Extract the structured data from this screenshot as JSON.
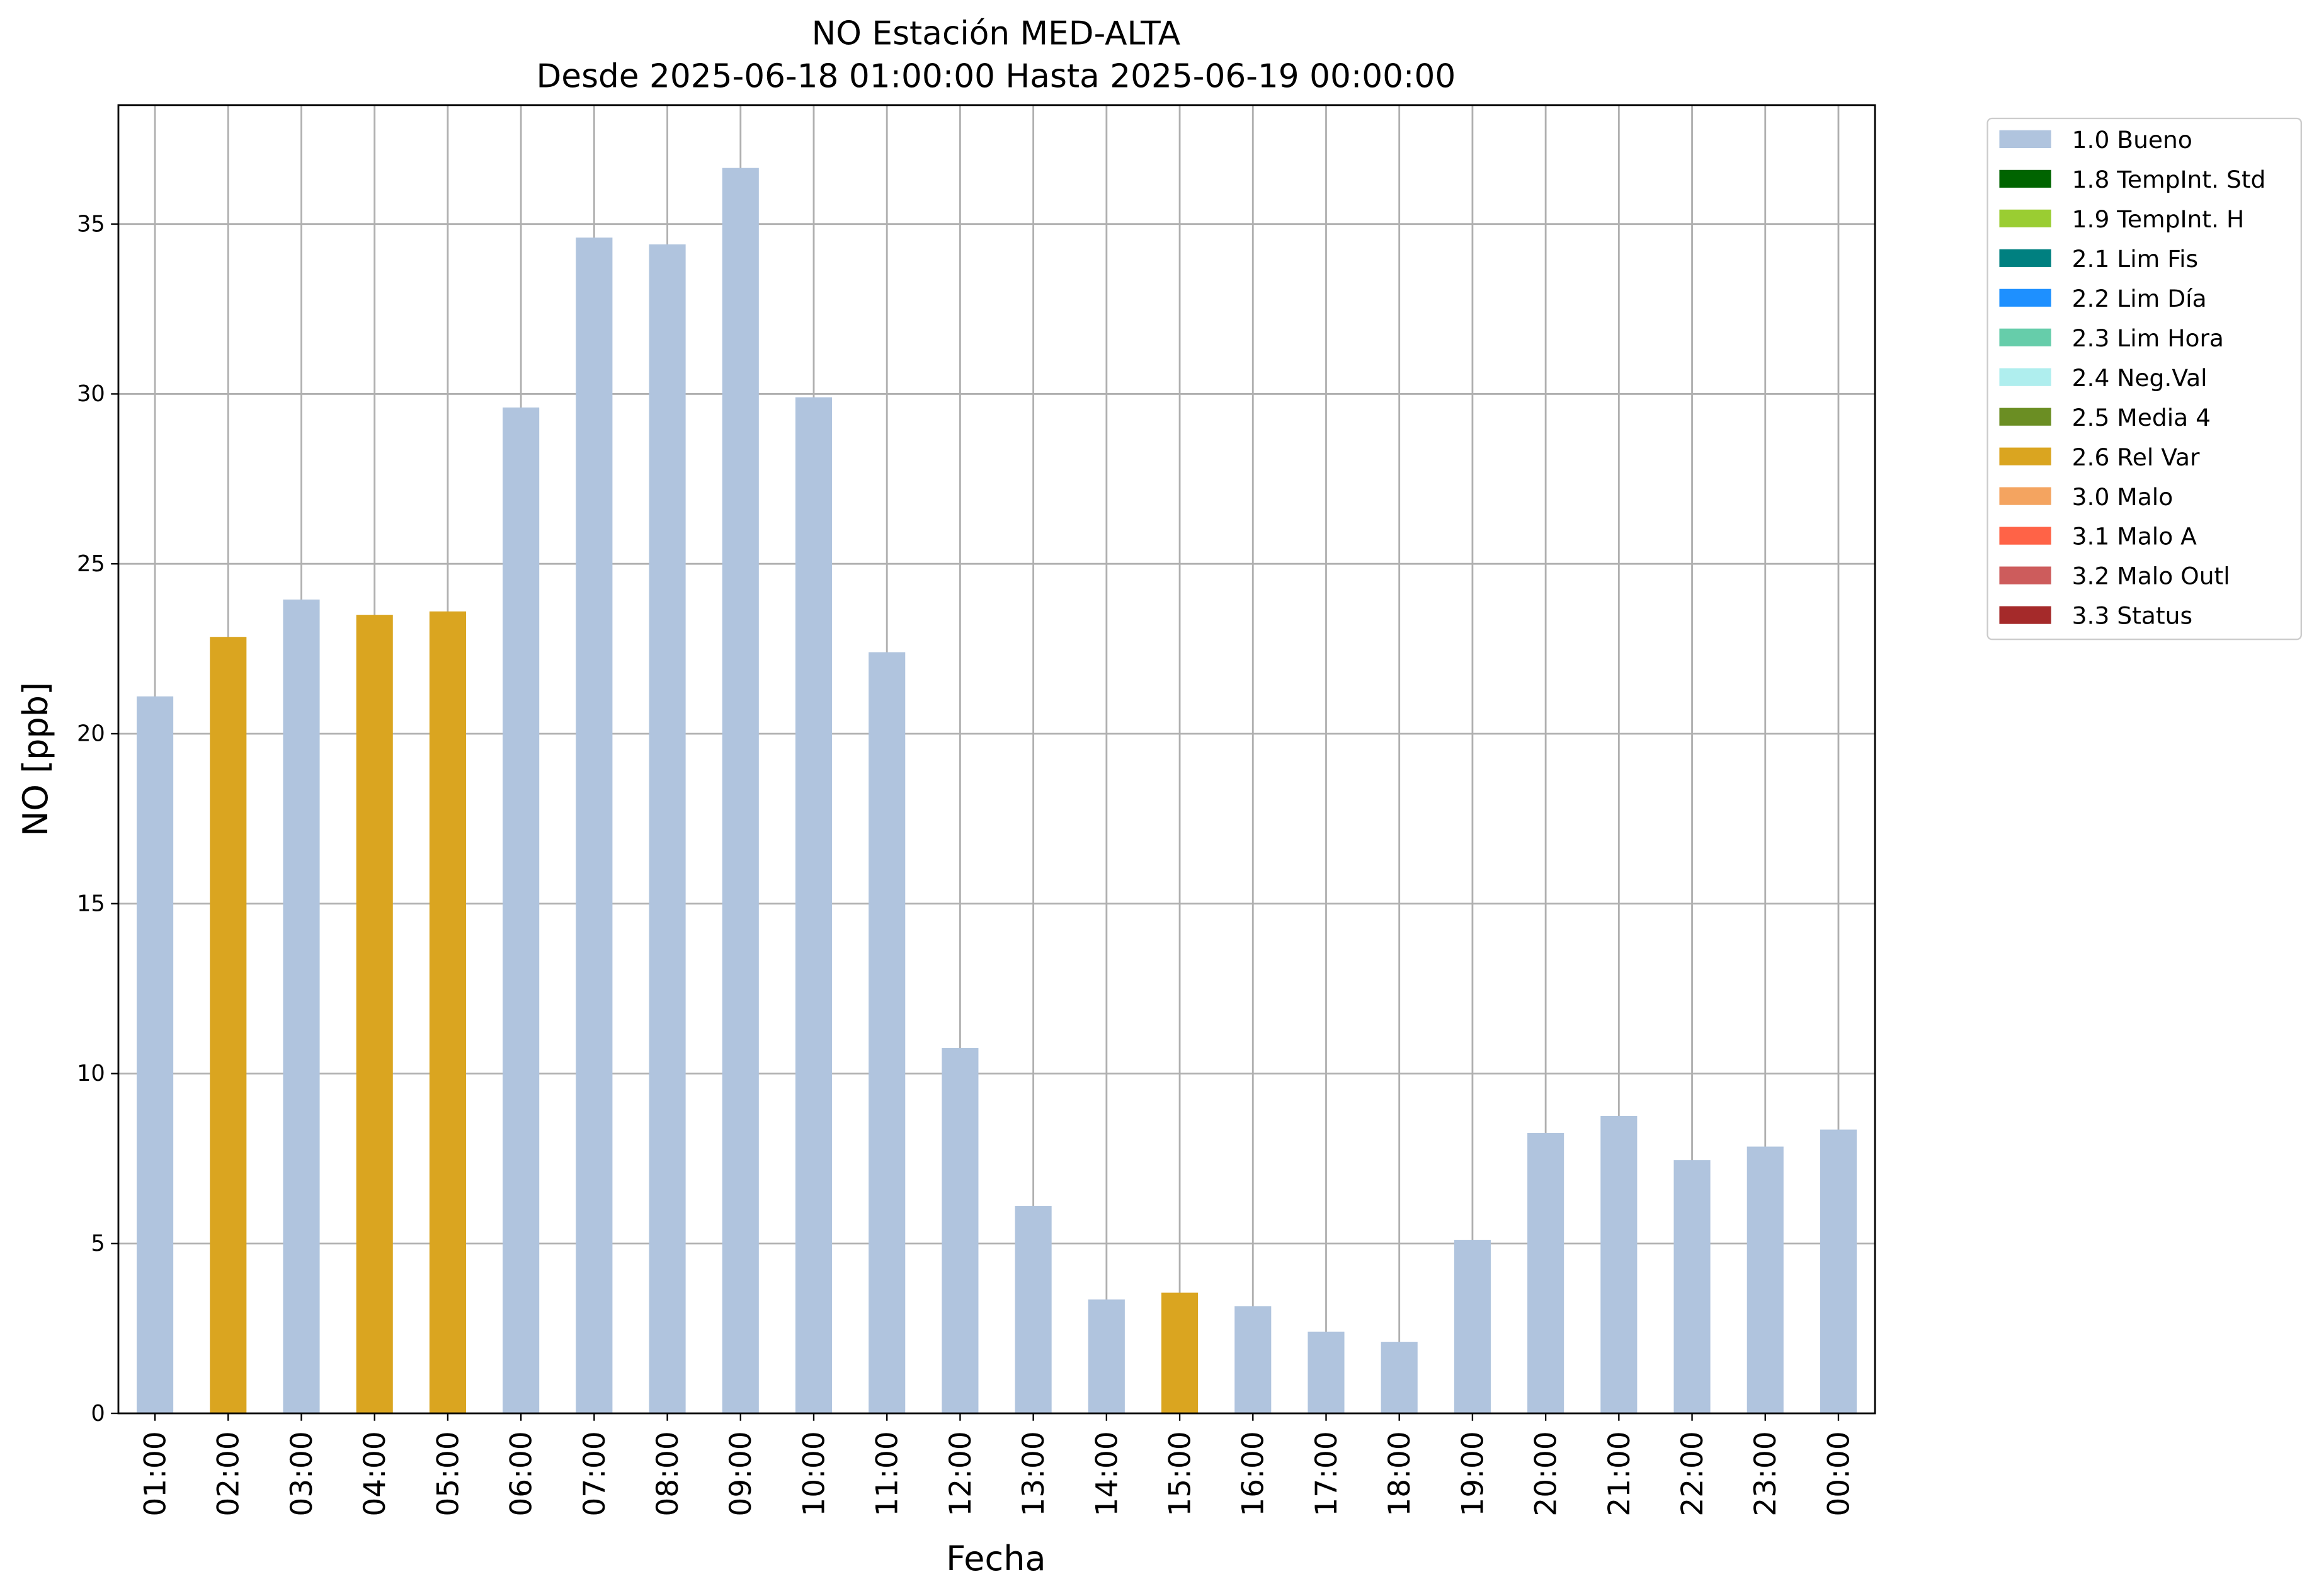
{
  "chart_data": {
    "type": "bar",
    "title": "NO Estación MED-ALTA",
    "subtitle": "Desde 2025-06-18 01:00:00 Hasta 2025-06-19 00:00:00",
    "x_label": "Fecha",
    "y_label": "NO [ppb]",
    "categories": [
      "01:00",
      "02:00",
      "03:00",
      "04:00",
      "05:00",
      "06:00",
      "07:00",
      "08:00",
      "09:00",
      "10:00",
      "11:00",
      "12:00",
      "13:00",
      "14:00",
      "15:00",
      "16:00",
      "17:00",
      "18:00",
      "19:00",
      "20:00",
      "21:00",
      "22:00",
      "23:00",
      "00:00"
    ],
    "series": [
      {
        "name": "1.0 Bueno",
        "color": "#b0c4de",
        "values": [
          21.1,
          null,
          23.95,
          null,
          null,
          29.6,
          34.6,
          34.4,
          36.65,
          29.9,
          22.4,
          10.75,
          6.1,
          3.35,
          null,
          3.15,
          2.4,
          2.1,
          5.1,
          8.25,
          8.75,
          7.45,
          7.85,
          8.35
        ]
      },
      {
        "name": "1.8 TempInt. Std",
        "color": "#006400",
        "values": [
          null,
          null,
          null,
          null,
          null,
          null,
          null,
          null,
          null,
          null,
          null,
          null,
          null,
          null,
          null,
          null,
          null,
          null,
          null,
          null,
          null,
          null,
          null,
          null
        ]
      },
      {
        "name": "1.9 TempInt. H",
        "color": "#9acd32",
        "values": [
          null,
          null,
          null,
          null,
          null,
          null,
          null,
          null,
          null,
          null,
          null,
          null,
          null,
          null,
          null,
          null,
          null,
          null,
          null,
          null,
          null,
          null,
          null,
          null
        ]
      },
      {
        "name": "2.1 Lim Fis",
        "color": "#008080",
        "values": [
          null,
          null,
          null,
          null,
          null,
          null,
          null,
          null,
          null,
          null,
          null,
          null,
          null,
          null,
          null,
          null,
          null,
          null,
          null,
          null,
          null,
          null,
          null,
          null
        ]
      },
      {
        "name": "2.2 Lim Día",
        "color": "#1e90ff",
        "values": [
          null,
          null,
          null,
          null,
          null,
          null,
          null,
          null,
          null,
          null,
          null,
          null,
          null,
          null,
          null,
          null,
          null,
          null,
          null,
          null,
          null,
          null,
          null,
          null
        ]
      },
      {
        "name": "2.3 Lim Hora",
        "color": "#66cdaa",
        "values": [
          null,
          null,
          null,
          null,
          null,
          null,
          null,
          null,
          null,
          null,
          null,
          null,
          null,
          null,
          null,
          null,
          null,
          null,
          null,
          null,
          null,
          null,
          null,
          null
        ]
      },
      {
        "name": "2.4 Neg.Val",
        "color": "#afeeee",
        "values": [
          null,
          null,
          null,
          null,
          null,
          null,
          null,
          null,
          null,
          null,
          null,
          null,
          null,
          null,
          null,
          null,
          null,
          null,
          null,
          null,
          null,
          null,
          null,
          null
        ]
      },
      {
        "name": "2.5 Media 4",
        "color": "#6b8e23",
        "values": [
          null,
          null,
          null,
          null,
          null,
          null,
          null,
          null,
          null,
          null,
          null,
          null,
          null,
          null,
          null,
          null,
          null,
          null,
          null,
          null,
          null,
          null,
          null,
          null
        ]
      },
      {
        "name": "2.6 Rel Var",
        "color": "#daa520",
        "values": [
          null,
          22.85,
          null,
          23.5,
          23.6,
          null,
          null,
          null,
          null,
          null,
          null,
          null,
          null,
          null,
          3.55,
          null,
          null,
          null,
          null,
          null,
          null,
          null,
          null,
          null
        ]
      },
      {
        "name": "3.0 Malo",
        "color": "#f4a460",
        "values": [
          null,
          null,
          null,
          null,
          null,
          null,
          null,
          null,
          null,
          null,
          null,
          null,
          null,
          null,
          null,
          null,
          null,
          null,
          null,
          null,
          null,
          null,
          null,
          null
        ]
      },
      {
        "name": "3.1 Malo A",
        "color": "#ff6347",
        "values": [
          null,
          null,
          null,
          null,
          null,
          null,
          null,
          null,
          null,
          null,
          null,
          null,
          null,
          null,
          null,
          null,
          null,
          null,
          null,
          null,
          null,
          null,
          null,
          null
        ]
      },
      {
        "name": "3.2 Malo Outl",
        "color": "#cd5c5c",
        "values": [
          null,
          null,
          null,
          null,
          null,
          null,
          null,
          null,
          null,
          null,
          null,
          null,
          null,
          null,
          null,
          null,
          null,
          null,
          null,
          null,
          null,
          null,
          null,
          null
        ]
      },
      {
        "name": "3.3 Status",
        "color": "#a52a2a",
        "values": [
          null,
          null,
          null,
          null,
          null,
          null,
          null,
          null,
          null,
          null,
          null,
          null,
          null,
          null,
          null,
          null,
          null,
          null,
          null,
          null,
          null,
          null,
          null,
          null
        ]
      }
    ],
    "ylim": [
      0,
      38.5
    ],
    "yticks": [
      0,
      5,
      10,
      15,
      20,
      25,
      30,
      35
    ],
    "grid": true,
    "legend": "outside right"
  }
}
